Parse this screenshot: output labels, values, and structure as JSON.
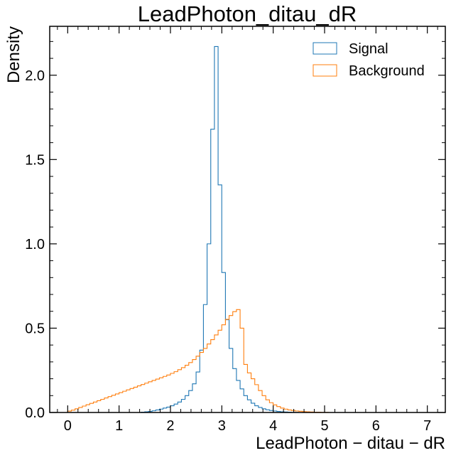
{
  "chart_data": {
    "type": "histogram",
    "title": "LeadPhoton_ditau_dR",
    "xlabel": "LeadPhoton − ditau − dR",
    "ylabel": "Density",
    "xlim": [
      -0.35,
      7.35
    ],
    "ylim": [
      0,
      2.29
    ],
    "xticks": [
      0,
      1,
      2,
      3,
      4,
      5,
      6,
      7
    ],
    "xtick_labels": [
      "0",
      "1",
      "2",
      "3",
      "4",
      "5",
      "6",
      "7"
    ],
    "yticks": [
      0,
      0.5,
      1.0,
      1.5,
      2.0
    ],
    "ytick_labels": [
      "0.0",
      "0.5",
      "1.0",
      "1.5",
      "2.0"
    ],
    "legend_position": "top-right",
    "bin_start": 0.0,
    "bin_width": 0.0714,
    "series": [
      {
        "name": "Signal",
        "color": "#1f77b4",
        "values": [
          0,
          0,
          0,
          0,
          0,
          0,
          0,
          0,
          0,
          0,
          0,
          0,
          0,
          0,
          0,
          0,
          0,
          0,
          0,
          0,
          0.002,
          0.004,
          0.006,
          0.01,
          0.015,
          0.02,
          0.026,
          0.032,
          0.04,
          0.05,
          0.062,
          0.078,
          0.1,
          0.13,
          0.17,
          0.24,
          0.37,
          0.64,
          1.0,
          1.68,
          2.17,
          1.35,
          0.83,
          0.55,
          0.38,
          0.26,
          0.19,
          0.14,
          0.1,
          0.075,
          0.055,
          0.04,
          0.03,
          0.022,
          0.016,
          0.012,
          0.009,
          0.006,
          0.004,
          0.003,
          0.002,
          0.001,
          0.001,
          0,
          0,
          0,
          0,
          0,
          0,
          0,
          0,
          0,
          0,
          0,
          0,
          0,
          0,
          0,
          0,
          0,
          0,
          0,
          0,
          0,
          0,
          0,
          0,
          0,
          0,
          0,
          0,
          0,
          0,
          0,
          0,
          0,
          0,
          0,
          0,
          0
        ]
      },
      {
        "name": "Background",
        "color": "#ff7f0e",
        "values": [
          0.008,
          0.014,
          0.022,
          0.03,
          0.038,
          0.046,
          0.054,
          0.062,
          0.07,
          0.078,
          0.086,
          0.094,
          0.102,
          0.11,
          0.118,
          0.126,
          0.134,
          0.142,
          0.15,
          0.158,
          0.166,
          0.174,
          0.182,
          0.19,
          0.198,
          0.206,
          0.214,
          0.222,
          0.232,
          0.242,
          0.254,
          0.266,
          0.28,
          0.296,
          0.314,
          0.334,
          0.356,
          0.38,
          0.406,
          0.432,
          0.46,
          0.488,
          0.52,
          0.552,
          0.575,
          0.598,
          0.61,
          0.5,
          0.285,
          0.235,
          0.2,
          0.165,
          0.13,
          0.1,
          0.075,
          0.058,
          0.045,
          0.035,
          0.026,
          0.02,
          0.015,
          0.012,
          0.009,
          0.007,
          0.005,
          0.004,
          0.003,
          0.002,
          0.002,
          0.001,
          0.001,
          0,
          0,
          0,
          0,
          0,
          0,
          0,
          0,
          0,
          0,
          0,
          0,
          0,
          0,
          0,
          0,
          0,
          0,
          0,
          0,
          0,
          0,
          0,
          0,
          0,
          0,
          0,
          0,
          0
        ]
      }
    ]
  }
}
